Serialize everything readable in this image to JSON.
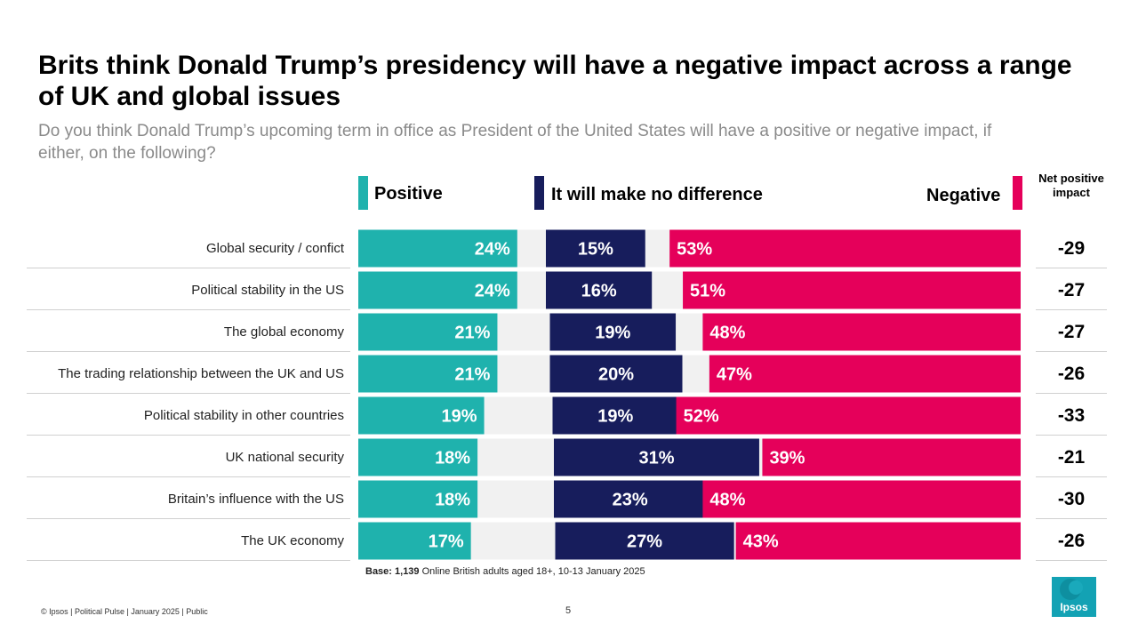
{
  "header": {
    "title": "Brits think Donald Trump’s presidency will have a negative impact across a range of UK and global issues",
    "subtitle": "Do you think Donald Trump’s upcoming term in office as President of the United States will have a positive or negative impact, if either, on the following?"
  },
  "legend": {
    "positive": "Positive",
    "no_difference": "It will make no difference",
    "negative": "Negative",
    "net_header": "Net positive impact"
  },
  "colors": {
    "positive": "#1fb2ad",
    "no_difference": "#171d5c",
    "negative": "#e5005a",
    "dont_know": "#f1f1f1"
  },
  "chart_data": {
    "type": "bar",
    "stacked": true,
    "orientation": "horizontal",
    "xlim": [
      0,
      100
    ],
    "categories": [
      "Global security / confict",
      "Political stability in the US",
      "The global economy",
      "The trading relationship between the UK and US",
      "Political stability in other countries",
      "UK national security",
      "Britain’s influence with the US",
      "The UK economy"
    ],
    "series": [
      {
        "name": "Positive",
        "values": [
          24,
          24,
          21,
          21,
          19,
          18,
          18,
          17
        ]
      },
      {
        "name": "It will make no difference",
        "values": [
          15,
          16,
          19,
          20,
          19,
          31,
          23,
          27
        ]
      },
      {
        "name": "Negative",
        "values": [
          53,
          51,
          48,
          47,
          52,
          39,
          48,
          43
        ]
      }
    ],
    "labels": {
      "positive": [
        "24%",
        "24%",
        "21%",
        "21%",
        "19%",
        "18%",
        "18%",
        "17%"
      ],
      "no_difference": [
        "15%",
        "16%",
        "19%",
        "20%",
        "19%",
        "31%",
        "23%",
        "27%"
      ],
      "negative": [
        "53%",
        "51%",
        "48%",
        "47%",
        "52%",
        "39%",
        "48%",
        "43%"
      ]
    },
    "net_positive_impact": [
      "-29",
      "-27",
      "-27",
      "-26",
      "-33",
      "-21",
      "-30",
      "-26"
    ]
  },
  "notes": {
    "base_bold": "Base: 1,139",
    "base_rest": "Online British adults aged 18+,  10-13 January 2025"
  },
  "footer": {
    "left": "© Ipsos | Political Pulse | January 2025 | Public",
    "page": "5"
  },
  "logo": {
    "text": "Ipsos"
  }
}
